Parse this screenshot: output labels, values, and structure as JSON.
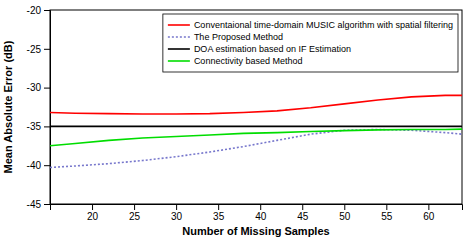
{
  "chart_data": {
    "type": "line",
    "xlabel": "Number of Missing Samples",
    "ylabel": "Mean Absolute Error (dB)",
    "xlim": [
      15,
      64
    ],
    "ylim": [
      -45,
      -20
    ],
    "xticks": [
      20,
      25,
      30,
      35,
      40,
      45,
      50,
      55,
      60
    ],
    "yticks": [
      -45,
      -40,
      -35,
      -30,
      -25,
      -20
    ],
    "grid": false,
    "legend": "upper right",
    "series": [
      {
        "name": "Conventaional time-domain MUSIC algorithm with spatial filtering",
        "color": "#ff0000",
        "line_style": "solid",
        "x": [
          15,
          18,
          22,
          26,
          30,
          34,
          38,
          42,
          46,
          50,
          54,
          58,
          62,
          64
        ],
        "values": [
          -33.2,
          -33.3,
          -33.35,
          -33.4,
          -33.4,
          -33.35,
          -33.2,
          -33.0,
          -32.6,
          -32.1,
          -31.6,
          -31.2,
          -31.0,
          -31.0
        ]
      },
      {
        "name": "The Proposed Method",
        "color": "#7777cc",
        "line_style": "dotted",
        "x": [
          15,
          18,
          22,
          26,
          30,
          34,
          38,
          42,
          46,
          50,
          54,
          58,
          62,
          64
        ],
        "values": [
          -40.3,
          -40.1,
          -39.8,
          -39.4,
          -38.9,
          -38.3,
          -37.6,
          -36.8,
          -36.0,
          -35.5,
          -35.4,
          -35.5,
          -35.8,
          -36.0
        ]
      },
      {
        "name": "DOA estimation based on IF Estimation",
        "color": "#000000",
        "line_style": "solid",
        "x": [
          15,
          64
        ],
        "values": [
          -35.0,
          -35.0
        ]
      },
      {
        "name": "Connectivity based Method",
        "color": "#00dd00",
        "line_style": "solid",
        "x": [
          15,
          18,
          22,
          26,
          30,
          34,
          38,
          42,
          46,
          50,
          54,
          58,
          62,
          64
        ],
        "values": [
          -37.5,
          -37.2,
          -36.8,
          -36.5,
          -36.3,
          -36.1,
          -35.9,
          -35.8,
          -35.65,
          -35.55,
          -35.45,
          -35.4,
          -35.4,
          -35.35
        ]
      }
    ]
  }
}
